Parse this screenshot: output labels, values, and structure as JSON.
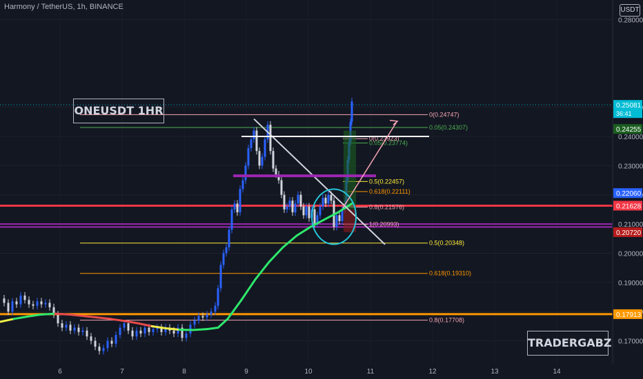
{
  "header": {
    "symbol_line": "Harmony / TetherUS, 1h, BINANCE",
    "currency": "USDT"
  },
  "annotations": {
    "label1": "ONEUSDT 1HR",
    "label2": "TRADERGABZ"
  },
  "colors": {
    "bg": "#131722",
    "axis_text": "#b2b5be",
    "grid": "#1e222d",
    "up": "#2962ff",
    "down": "#d1d4dc",
    "ma_green": "#2ee86d",
    "ma_red": "#e84b4b",
    "ma_yellow": "#f0f04a",
    "red_line": "#f23645",
    "orange_line": "#ff9800",
    "purple_line": "#9c27b0",
    "fib_pink": "#f7a6b4",
    "fib_green": "#4caf50",
    "fib_yellow": "#ffeb3b",
    "fib_orange": "#ff9800",
    "white_line": "#ffffff",
    "cyan_circle": "#26c6da"
  },
  "chart_data": {
    "type": "line",
    "title": "",
    "x_ticks": [
      "6",
      "7",
      "8",
      "9",
      "10",
      "11",
      "12",
      "13",
      "14"
    ],
    "y_ticks": [
      "0.28000",
      "0.25000",
      "0.24000",
      "0.23000",
      "0.22000",
      "0.21000",
      "0.20000",
      "0.19000",
      "0.18000",
      "0.17000"
    ],
    "ylim": [
      0.164,
      0.282
    ],
    "price_badges": [
      {
        "label": "0.25081",
        "sub": "36:41",
        "value": 0.25081,
        "color": "#00bcd4"
      },
      {
        "label": "0.24255",
        "value": 0.24255,
        "color": "#1b5e20"
      },
      {
        "label": "0.22060",
        "value": 0.2206,
        "color": "#2962ff"
      },
      {
        "label": "0.21628",
        "value": 0.21628,
        "color": "#f23645"
      },
      {
        "label": "0.20720",
        "value": 0.2072,
        "color": "#b71c1c"
      },
      {
        "label": "0.17913",
        "value": 0.17913,
        "color": "#ff9800"
      }
    ],
    "price_line": 0.25081,
    "horizontal_lines": [
      {
        "value": 0.21628,
        "color": "#f23645"
      },
      {
        "value": 0.17913,
        "color": "#ff9800"
      },
      {
        "value": 0.21,
        "color": "#9c27b0"
      },
      {
        "value": 0.209,
        "color": "#9c27b0"
      }
    ],
    "fib_levels": [
      {
        "label": "0(0.24747)",
        "value": 0.24747,
        "color": "#f7a6b4"
      },
      {
        "label": "0.05(0.24307)",
        "value": 0.24307,
        "color": "#4caf50"
      },
      {
        "label": "0.5(0.20348)",
        "value": 0.20348,
        "color": "#ffeb3b"
      },
      {
        "label": "0.618(0.19310)",
        "value": 0.1931,
        "color": "#ff9800"
      },
      {
        "label": "0.8(0.17708)",
        "value": 0.17708,
        "color": "#f7a6b4"
      }
    ],
    "fib_inner": [
      {
        "label": "0(0.23923)",
        "value": 0.23923,
        "color": "#f7a6b4"
      },
      {
        "label": "0.05(0.23774)",
        "value": 0.23774,
        "color": "#4caf50"
      },
      {
        "label": "0.5(0.22457)",
        "value": 0.22457,
        "color": "#ffeb3b"
      },
      {
        "label": "0.618(0.22111)",
        "value": 0.22111,
        "color": "#ff9800"
      },
      {
        "label": "0.8(0.21576)",
        "value": 0.21576,
        "color": "#f7a6b4"
      },
      {
        "label": "1(0.20993)",
        "value": 0.20993,
        "color": "#f7a6b4"
      }
    ],
    "price_series": [
      [
        0,
        0.1845
      ],
      [
        6,
        0.183
      ],
      [
        12,
        0.18
      ],
      [
        18,
        0.1835
      ],
      [
        24,
        0.1825
      ],
      [
        30,
        0.1855
      ],
      [
        36,
        0.184
      ],
      [
        42,
        0.1825
      ],
      [
        48,
        0.182
      ],
      [
        54,
        0.1835
      ],
      [
        60,
        0.1825
      ],
      [
        66,
        0.183
      ],
      [
        72,
        0.1815
      ],
      [
        78,
        0.179
      ],
      [
        84,
        0.176
      ],
      [
        90,
        0.1745
      ],
      [
        96,
        0.1755
      ],
      [
        102,
        0.1735
      ],
      [
        108,
        0.1745
      ],
      [
        114,
        0.173
      ],
      [
        120,
        0.1735
      ],
      [
        126,
        0.1715
      ],
      [
        132,
        0.17
      ],
      [
        138,
        0.168
      ],
      [
        144,
        0.1665
      ],
      [
        150,
        0.1675
      ],
      [
        156,
        0.17
      ],
      [
        162,
        0.169
      ],
      [
        168,
        0.172
      ],
      [
        174,
        0.1745
      ],
      [
        180,
        0.176
      ],
      [
        186,
        0.1735
      ],
      [
        192,
        0.1715
      ],
      [
        198,
        0.1735
      ],
      [
        204,
        0.1725
      ],
      [
        210,
        0.1745
      ],
      [
        216,
        0.173
      ],
      [
        222,
        0.174
      ],
      [
        228,
        0.1745
      ],
      [
        234,
        0.173
      ],
      [
        240,
        0.1745
      ],
      [
        246,
        0.1735
      ],
      [
        252,
        0.1725
      ],
      [
        258,
        0.1745
      ],
      [
        264,
        0.171
      ],
      [
        270,
        0.1725
      ],
      [
        276,
        0.1755
      ],
      [
        282,
        0.177
      ],
      [
        288,
        0.1785
      ],
      [
        294,
        0.178
      ],
      [
        300,
        0.179
      ],
      [
        306,
        0.18
      ],
      [
        312,
        0.182
      ],
      [
        316,
        0.188
      ],
      [
        320,
        0.196
      ],
      [
        324,
        0.2
      ],
      [
        328,
        0.202
      ],
      [
        332,
        0.208
      ],
      [
        336,
        0.215
      ],
      [
        340,
        0.217
      ],
      [
        344,
        0.214
      ],
      [
        348,
        0.222
      ],
      [
        352,
        0.225
      ],
      [
        356,
        0.23
      ],
      [
        360,
        0.236
      ],
      [
        364,
        0.239
      ],
      [
        368,
        0.242
      ],
      [
        372,
        0.235
      ],
      [
        376,
        0.23
      ],
      [
        380,
        0.233
      ],
      [
        384,
        0.239
      ],
      [
        388,
        0.244
      ],
      [
        392,
        0.235
      ],
      [
        396,
        0.229
      ],
      [
        400,
        0.227
      ],
      [
        404,
        0.225
      ],
      [
        408,
        0.22
      ],
      [
        412,
        0.215
      ],
      [
        416,
        0.216
      ],
      [
        420,
        0.218
      ],
      [
        424,
        0.214
      ],
      [
        428,
        0.217
      ],
      [
        432,
        0.22
      ],
      [
        436,
        0.216
      ],
      [
        440,
        0.213
      ],
      [
        444,
        0.216
      ],
      [
        448,
        0.212
      ],
      [
        452,
        0.215
      ],
      [
        456,
        0.21
      ],
      [
        460,
        0.213
      ],
      [
        464,
        0.216
      ],
      [
        468,
        0.219
      ],
      [
        472,
        0.217
      ],
      [
        476,
        0.22
      ],
      [
        480,
        0.218
      ],
      [
        484,
        0.209
      ],
      [
        488,
        0.213
      ],
      [
        492,
        0.211
      ],
      [
        496,
        0.215
      ],
      [
        500,
        0.217
      ],
      [
        502,
        0.225
      ],
      [
        504,
        0.232
      ],
      [
        506,
        0.238
      ],
      [
        508,
        0.245
      ],
      [
        510,
        0.252
      ]
    ],
    "ma_series": [
      [
        0,
        0.1765
      ],
      [
        20,
        0.1775
      ],
      [
        40,
        0.1783
      ],
      [
        60,
        0.179
      ],
      [
        80,
        0.1793
      ],
      [
        100,
        0.179
      ],
      [
        120,
        0.1785
      ],
      [
        140,
        0.178
      ],
      [
        160,
        0.1775
      ],
      [
        180,
        0.1768
      ],
      [
        200,
        0.176
      ],
      [
        220,
        0.175
      ],
      [
        240,
        0.1743
      ],
      [
        260,
        0.1738
      ],
      [
        280,
        0.1737
      ],
      [
        300,
        0.174
      ],
      [
        316,
        0.1745
      ],
      [
        330,
        0.1775
      ],
      [
        350,
        0.184
      ],
      [
        370,
        0.191
      ],
      [
        390,
        0.197
      ],
      [
        410,
        0.202
      ],
      [
        430,
        0.206
      ],
      [
        450,
        0.209
      ],
      [
        470,
        0.2115
      ],
      [
        490,
        0.214
      ],
      [
        510,
        0.217
      ]
    ]
  }
}
